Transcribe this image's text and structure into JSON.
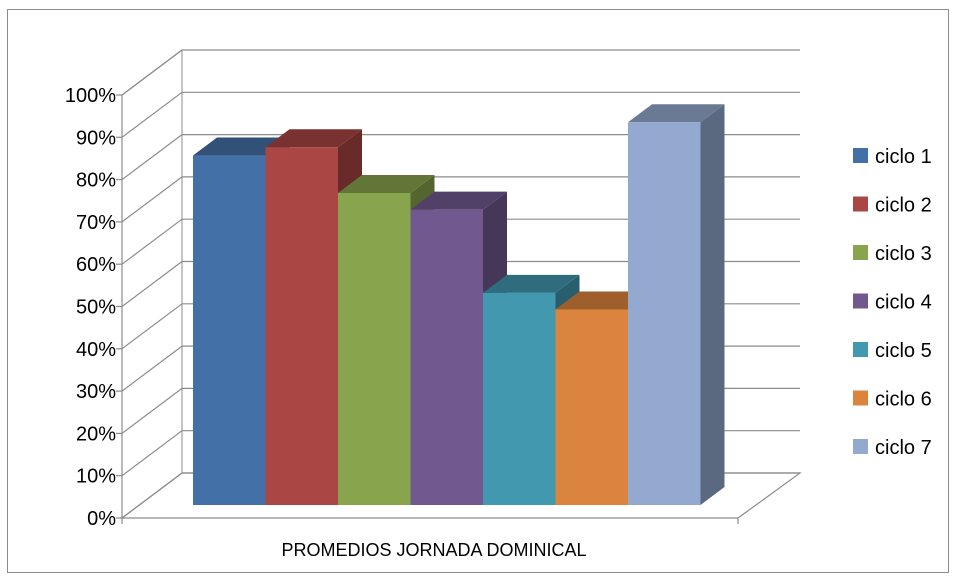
{
  "chart_data": {
    "type": "bar",
    "title": "",
    "xlabel": "",
    "ylabel": "",
    "categories": [
      "PROMEDIOS JORNADA DOMINICAL"
    ],
    "series": [
      {
        "name": "ciclo 1",
        "values": [
          0.84
        ],
        "color": "#4470A8"
      },
      {
        "name": "ciclo 2",
        "values": [
          0.86
        ],
        "color": "#AA4643"
      },
      {
        "name": "ciclo 3",
        "values": [
          0.75
        ],
        "color": "#88A54D"
      },
      {
        "name": "ciclo 4",
        "values": [
          0.71
        ],
        "color": "#71598F"
      },
      {
        "name": "ciclo 5",
        "values": [
          0.51
        ],
        "color": "#4198AF"
      },
      {
        "name": "ciclo 6",
        "values": [
          0.47
        ],
        "color": "#DB843D"
      },
      {
        "name": "ciclo 7",
        "values": [
          0.92
        ],
        "color": "#93A9CF"
      }
    ],
    "ylim": [
      0,
      1
    ],
    "y_ticks": [
      "0%",
      "10%",
      "20%",
      "30%",
      "40%",
      "50%",
      "60%",
      "70%",
      "80%",
      "90%",
      "100%"
    ],
    "y_format": "percent",
    "grid": true,
    "three_d": true,
    "legend_position": "right"
  }
}
